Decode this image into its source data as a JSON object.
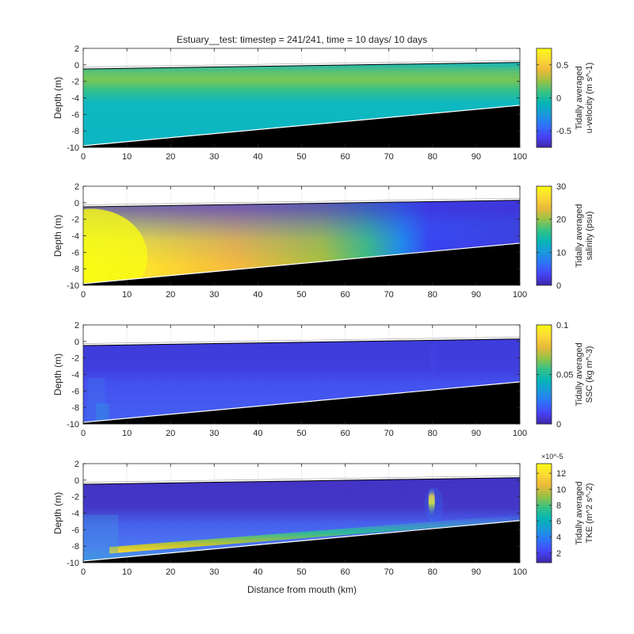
{
  "title": "Estuary__test: timestep = 241/241, time = 10 days/ 10 days",
  "xlabel": "Distance from mouth (km)",
  "colormap": [
    "#3e26a8",
    "#4743f6",
    "#2f72fa",
    "#1a98db",
    "#06b5b5",
    "#36c286",
    "#97c246",
    "#e9b93a",
    "#fed934",
    "#f9fb15"
  ],
  "bed_color": "#000000",
  "chart_data": [
    {
      "type": "heatmap",
      "variable": "u-velocity",
      "ylabel": "Depth (m)",
      "xlim": [
        0,
        100
      ],
      "ylim": [
        -10,
        2
      ],
      "xticks": [
        0,
        10,
        20,
        30,
        40,
        50,
        60,
        70,
        80,
        90,
        100
      ],
      "yticks": [
        2,
        0,
        -2,
        -4,
        -6,
        -8,
        -10
      ],
      "surface": {
        "x": [
          0,
          100
        ],
        "y": [
          -0.5,
          0.3
        ]
      },
      "bed": {
        "x": [
          0,
          100
        ],
        "y": [
          -9.8,
          -4.9
        ]
      },
      "colorbar": {
        "label1": "Tidally averaged",
        "label2": "u-velocity (m s^-1)",
        "range": [
          -0.75,
          0.75
        ],
        "ticks": [
          0.5,
          0,
          -0.5
        ]
      }
    },
    {
      "type": "heatmap",
      "variable": "salinity",
      "ylabel": "Depth (m)",
      "xlim": [
        0,
        100
      ],
      "ylim": [
        -10,
        2
      ],
      "xticks": [
        0,
        10,
        20,
        30,
        40,
        50,
        60,
        70,
        80,
        90,
        100
      ],
      "yticks": [
        2,
        0,
        -2,
        -4,
        -6,
        -8,
        -10
      ],
      "surface": {
        "x": [
          0,
          100
        ],
        "y": [
          -0.5,
          0.3
        ]
      },
      "bed": {
        "x": [
          0,
          100
        ],
        "y": [
          -9.8,
          -4.9
        ]
      },
      "colorbar": {
        "label1": "Tidally averaged",
        "label2": "salinity (psu)",
        "range": [
          0,
          30
        ],
        "ticks": [
          30,
          20,
          10,
          0
        ]
      }
    },
    {
      "type": "heatmap",
      "variable": "SSC",
      "ylabel": "Depth (m)",
      "xlim": [
        0,
        100
      ],
      "ylim": [
        -10,
        2
      ],
      "xticks": [
        0,
        10,
        20,
        30,
        40,
        50,
        60,
        70,
        80,
        90,
        100
      ],
      "yticks": [
        2,
        0,
        -2,
        -4,
        -6,
        -8,
        -10
      ],
      "surface": {
        "x": [
          0,
          100
        ],
        "y": [
          -0.5,
          0.3
        ]
      },
      "bed": {
        "x": [
          0,
          100
        ],
        "y": [
          -9.8,
          -4.9
        ]
      },
      "colorbar": {
        "label1": "Tidally averaged",
        "label2": "SSC (kg m^-3)",
        "range": [
          0,
          0.1
        ],
        "ticks": [
          0.1,
          0.05,
          0
        ]
      }
    },
    {
      "type": "heatmap",
      "variable": "TKE",
      "ylabel": "Depth (m)",
      "xlim": [
        0,
        100
      ],
      "ylim": [
        -10,
        2
      ],
      "xticks": [
        0,
        10,
        20,
        30,
        40,
        50,
        60,
        70,
        80,
        90,
        100
      ],
      "yticks": [
        2,
        0,
        -2,
        -4,
        -6,
        -8,
        -10
      ],
      "surface": {
        "x": [
          0,
          100
        ],
        "y": [
          -0.5,
          0.3
        ]
      },
      "bed": {
        "x": [
          0,
          100
        ],
        "y": [
          -9.8,
          -4.9
        ]
      },
      "colorbar": {
        "label1": "Tidally averaged",
        "label2": "TKE (m^2 s^-2)",
        "range": [
          0.8,
          13.2
        ],
        "ticks": [
          12,
          10,
          8,
          6,
          4,
          2
        ],
        "exponent": "×10^-5"
      }
    }
  ]
}
